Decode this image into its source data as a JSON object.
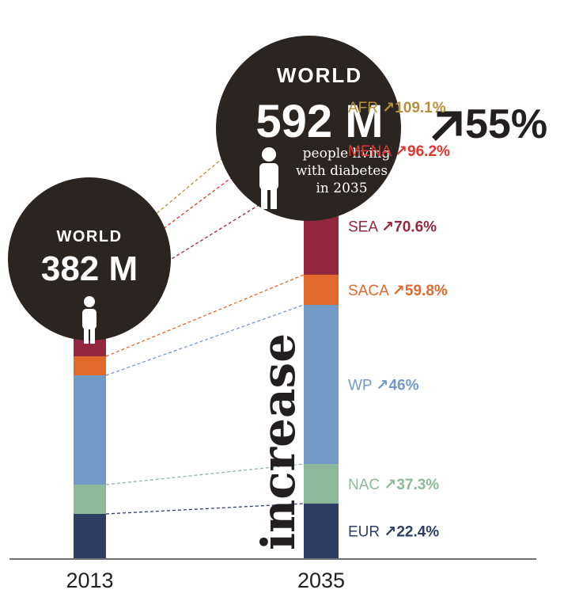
{
  "chart_data": {
    "type": "bar",
    "stacked": true,
    "categories": [
      "2013",
      "2035"
    ],
    "series": [
      {
        "name": "EUR",
        "values": [
          56,
          69
        ],
        "increase": "22.4%",
        "color": "#2e3f63"
      },
      {
        "name": "NAC",
        "values": [
          37,
          50
        ],
        "increase": "37.3%",
        "color": "#8db89a"
      },
      {
        "name": "WP",
        "values": [
          138,
          201
        ],
        "increase": "46%",
        "color": "#7399c6"
      },
      {
        "name": "SACA",
        "values": [
          24,
          38
        ],
        "increase": "59.8%",
        "color": "#e1692b"
      },
      {
        "name": "SEA",
        "values": [
          72,
          123
        ],
        "increase": "70.6%",
        "color": "#93273d"
      },
      {
        "name": "MENA",
        "values": [
          35,
          68
        ],
        "increase": "96.2%",
        "color": "#dd3730"
      },
      {
        "name": "AFR",
        "values": [
          20,
          42
        ],
        "increase": "109.1%",
        "color": "#b8903a"
      }
    ],
    "totals": [
      {
        "label": "WORLD",
        "value": "382 M"
      },
      {
        "label": "WORLD",
        "value": "592 M",
        "caption": [
          "people living",
          "with diabetes",
          "in 2035"
        ],
        "change": "55%"
      }
    ],
    "side_label": "increase",
    "arrow_glyph": "↗",
    "colors": {
      "bubble": "#2b2522",
      "text_dark": "#231f20",
      "baseline": "#444444"
    }
  }
}
